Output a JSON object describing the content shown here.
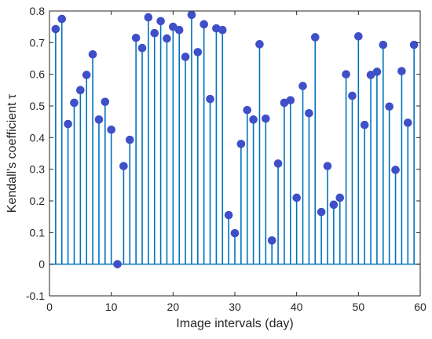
{
  "chart_data": {
    "type": "stem",
    "title": "",
    "xlabel": "Image intervals (day)",
    "ylabel": "Kendall's coefficient τ",
    "xlim": [
      0,
      60
    ],
    "ylim": [
      -0.1,
      0.8
    ],
    "xticks": [
      0,
      10,
      20,
      30,
      40,
      50,
      60
    ],
    "yticks": [
      -0.1,
      0,
      0.1,
      0.2,
      0.3,
      0.4,
      0.5,
      0.6,
      0.7,
      0.8
    ],
    "grid": false,
    "series": [
      {
        "color": "#0072BD",
        "marker_color": "#3E4FC7",
        "x": [
          1,
          2,
          3,
          4,
          5,
          6,
          7,
          8,
          9,
          10,
          11,
          12,
          13,
          14,
          15,
          16,
          17,
          18,
          19,
          20,
          21,
          22,
          23,
          24,
          25,
          26,
          27,
          28,
          29,
          30,
          31,
          32,
          33,
          34,
          35,
          36,
          37,
          38,
          39,
          40,
          41,
          42,
          43,
          44,
          45,
          46,
          47,
          48,
          49,
          50,
          51,
          52,
          53,
          54,
          55,
          56,
          57,
          58,
          59
        ],
        "y": [
          0.743,
          0.775,
          0.443,
          0.51,
          0.55,
          0.598,
          0.663,
          0.457,
          0.513,
          0.425,
          0.0,
          0.31,
          0.393,
          0.715,
          0.683,
          0.78,
          0.73,
          0.768,
          0.713,
          0.75,
          0.74,
          0.655,
          0.788,
          0.67,
          0.758,
          0.522,
          0.745,
          0.74,
          0.155,
          0.098,
          0.38,
          0.487,
          0.457,
          0.695,
          0.46,
          0.075,
          0.318,
          0.51,
          0.518,
          0.21,
          0.563,
          0.477,
          0.717,
          0.165,
          0.31,
          0.188,
          0.21,
          0.6,
          0.532,
          0.72,
          0.44,
          0.598,
          0.608,
          0.693,
          0.498,
          0.298,
          0.61,
          0.447,
          0.693
        ]
      }
    ]
  }
}
